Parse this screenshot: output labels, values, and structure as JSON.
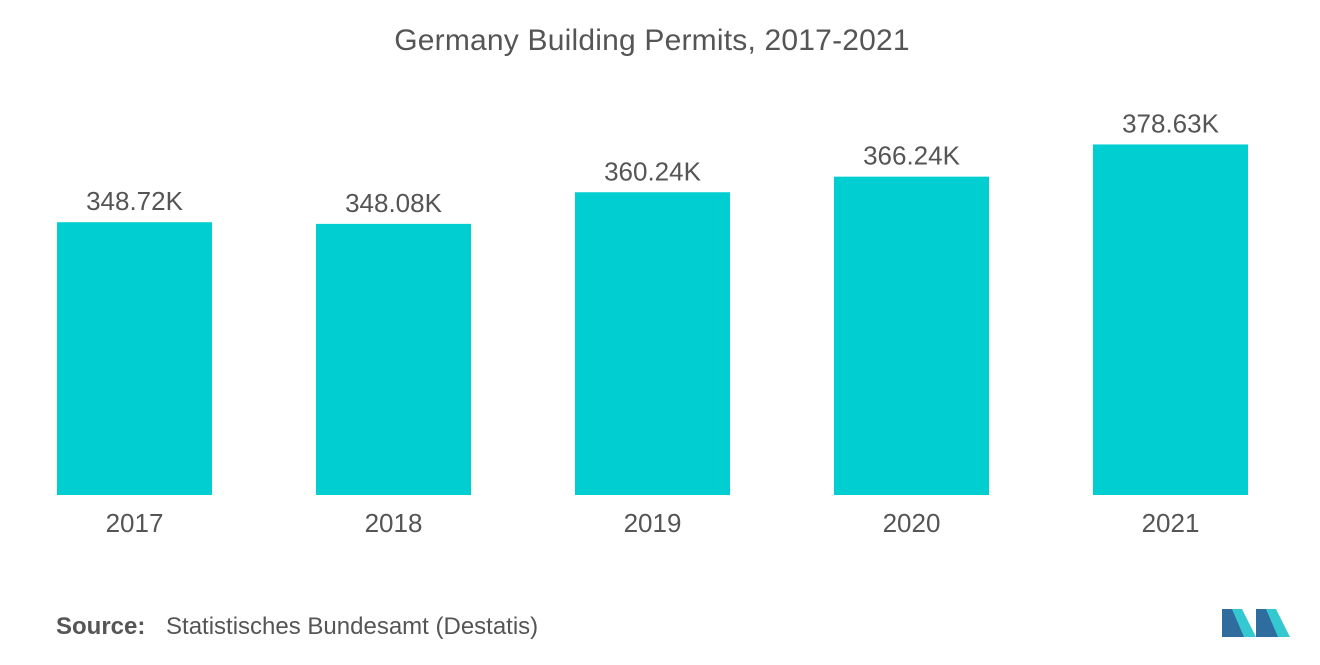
{
  "title": "Germany Building Permits, 2017-2021",
  "source": {
    "label": "Source:",
    "text": "Statistisches Bundesamt (Destatis)"
  },
  "colors": {
    "bar": "#00CED1",
    "text": "#555555",
    "logo_dark": "#2E6D9E",
    "logo_light": "#34C8D0"
  },
  "logo": {
    "icon": "mordor-intelligence-logo-icon"
  },
  "chart_data": {
    "type": "bar",
    "title": "Germany Building Permits, 2017-2021",
    "xlabel": "",
    "ylabel": "",
    "categories": [
      "2017",
      "2018",
      "2019",
      "2020",
      "2021"
    ],
    "values": [
      348.72,
      348.08,
      360.24,
      366.24,
      378.63
    ],
    "data_labels": [
      "348.72K",
      "348.08K",
      "360.24K",
      "366.24K",
      "378.63K"
    ],
    "unit": "K",
    "grid": false,
    "legend": "none"
  }
}
